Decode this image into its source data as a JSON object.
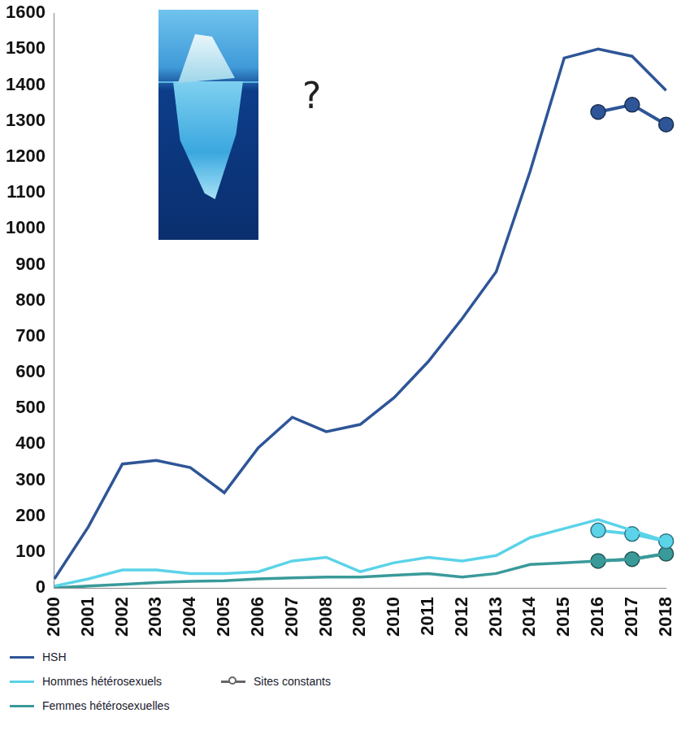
{
  "chart_data": {
    "type": "line",
    "annotation": "?",
    "categories": [
      "2000",
      "2001",
      "2002",
      "2003",
      "2004",
      "2005",
      "2006",
      "2007",
      "2008",
      "2009",
      "2010",
      "2011",
      "2012",
      "2013",
      "2014",
      "2015",
      "2016",
      "2017",
      "2018"
    ],
    "series": [
      {
        "name": "HSH",
        "color": "#2e5597",
        "line_style": "solid",
        "values": [
          25,
          170,
          345,
          355,
          335,
          265,
          390,
          475,
          435,
          455,
          530,
          630,
          750,
          880,
          1160,
          1475,
          1500,
          1480,
          1385
        ]
      },
      {
        "name": "Hommes hétérosexuels",
        "color": "#5bd3e8",
        "line_style": "solid",
        "values": [
          5,
          25,
          50,
          50,
          40,
          40,
          45,
          75,
          85,
          45,
          70,
          85,
          75,
          90,
          140,
          165,
          190,
          160,
          130
        ]
      },
      {
        "name": "Femmes hétérosexuelles",
        "color": "#3a9a9a",
        "line_style": "solid",
        "values": [
          0,
          5,
          10,
          15,
          18,
          20,
          25,
          28,
          30,
          30,
          35,
          40,
          30,
          40,
          65,
          70,
          75,
          80,
          95
        ]
      },
      {
        "name": "Sites constants",
        "color": "#2e5597",
        "marker": "circle",
        "line_style": "solid",
        "values": [
          null,
          null,
          null,
          null,
          null,
          null,
          null,
          null,
          null,
          null,
          null,
          null,
          null,
          null,
          null,
          null,
          1325,
          1345,
          1290
        ]
      },
      {
        "name": "Sites constants",
        "color": "#5bd3e8",
        "marker": "circle",
        "line_style": "solid",
        "values": [
          null,
          null,
          null,
          null,
          null,
          null,
          null,
          null,
          null,
          null,
          null,
          null,
          null,
          null,
          null,
          null,
          160,
          150,
          130
        ]
      },
      {
        "name": "Sites constants",
        "color": "#3a9a9a",
        "marker": "circle",
        "line_style": "solid",
        "values": [
          null,
          null,
          null,
          null,
          null,
          null,
          null,
          null,
          null,
          null,
          null,
          null,
          null,
          null,
          null,
          null,
          75,
          80,
          95
        ]
      }
    ],
    "ylim": [
      0,
      1600
    ],
    "yticks": [
      0,
      100,
      200,
      300,
      400,
      500,
      600,
      700,
      800,
      900,
      1000,
      1100,
      1200,
      1300,
      1400,
      1500,
      1600
    ],
    "grid": false,
    "legend": "bottom"
  }
}
